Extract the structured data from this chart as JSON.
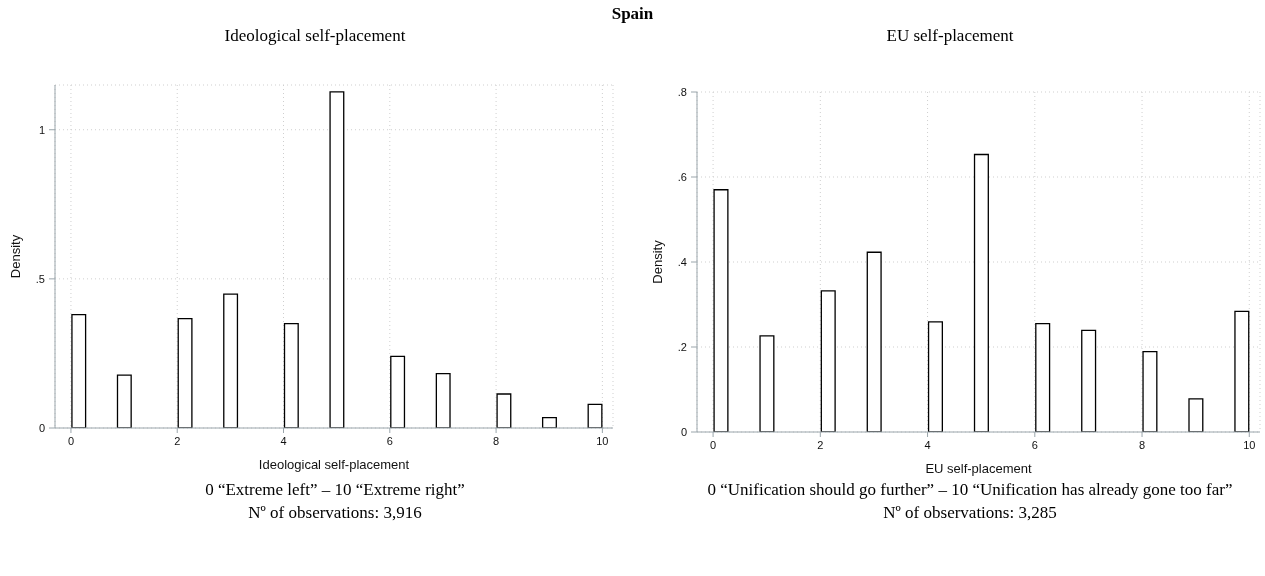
{
  "chart_data": [
    {
      "type": "histogram",
      "title": "Ideological self-placement",
      "xlabel": "Ideological self-placement",
      "ylabel": "Density",
      "annotations": [
        "Spain",
        "0 “Extreme left” – 10 “Extreme right”",
        "Nº of observations: 3,916"
      ],
      "bins": [
        0,
        0.2857,
        0.5714,
        0.8571,
        1.1429,
        1.4286,
        1.7143,
        2,
        2.2857,
        2.5714,
        2.8571,
        3.1429,
        3.4286,
        3.7143,
        4,
        4.2857,
        4.5714,
        4.8571,
        5.1429,
        5.4286,
        5.7143,
        6,
        6.2857,
        6.5714,
        6.8571,
        7.1429,
        7.4286,
        7.7143,
        8,
        8.2857,
        8.5714,
        8.8571,
        9.1429,
        9.4286,
        9.7143,
        10
      ],
      "values": [
        0.38,
        0,
        0,
        0.177,
        0,
        0,
        0,
        0.367,
        0,
        0,
        0.449,
        0,
        0,
        0,
        0.35,
        0,
        0,
        1.127,
        0,
        0,
        0,
        0.24,
        0,
        0,
        0.182,
        0,
        0,
        0,
        0.114,
        0,
        0,
        0.035,
        0,
        0,
        0.079
      ],
      "color": "#ffffff",
      "xlim": [
        -0.3,
        10.2
      ],
      "xticks": [
        {
          "value": 0,
          "label": "0"
        },
        2,
        4,
        6,
        8,
        10
      ],
      "ylim": [
        0,
        1.15
      ],
      "yticks": [
        {
          "value": 0,
          "label": "0"
        },
        {
          "value": 0.5,
          "label": ".5"
        },
        1
      ],
      "grid": true
    },
    {
      "type": "histogram",
      "title": "EU self-placement",
      "xlabel": "EU self-placement",
      "ylabel": "Density",
      "annotations": [
        "0 “Unification should go further” – 10 “Unification has already gone too far”",
        "Nº of observations: 3,285"
      ],
      "bins": [
        0,
        0.2857,
        0.5714,
        0.8571,
        1.1429,
        1.4286,
        1.7143,
        2,
        2.2857,
        2.5714,
        2.8571,
        3.1429,
        3.4286,
        3.7143,
        4,
        4.2857,
        4.5714,
        4.8571,
        5.1429,
        5.4286,
        5.7143,
        6,
        6.2857,
        6.5714,
        6.8571,
        7.1429,
        7.4286,
        7.7143,
        8,
        8.2857,
        8.5714,
        8.8571,
        9.1429,
        9.4286,
        9.7143,
        10
      ],
      "values": [
        0.57,
        0,
        0,
        0.226,
        0,
        0,
        0,
        0.332,
        0,
        0,
        0.423,
        0,
        0,
        0,
        0.259,
        0,
        0,
        0.653,
        0,
        0,
        0,
        0.255,
        0,
        0,
        0.239,
        0,
        0,
        0,
        0.189,
        0,
        0,
        0.078,
        0,
        0,
        0.284
      ],
      "color": "#ffffff",
      "xlim": [
        -0.3,
        10.2
      ],
      "xticks": [
        {
          "value": 0,
          "label": "0"
        },
        2,
        4,
        6,
        8,
        10
      ],
      "ylim": [
        0,
        0.8
      ],
      "yticks": [
        {
          "value": 0,
          "label": "0"
        },
        {
          "value": 0.2,
          "label": ".2"
        },
        {
          "value": 0.4,
          "label": ".4"
        },
        {
          "value": 0.6,
          "label": ".6"
        },
        {
          "value": 0.8,
          "label": ".8"
        }
      ],
      "grid": true
    }
  ]
}
